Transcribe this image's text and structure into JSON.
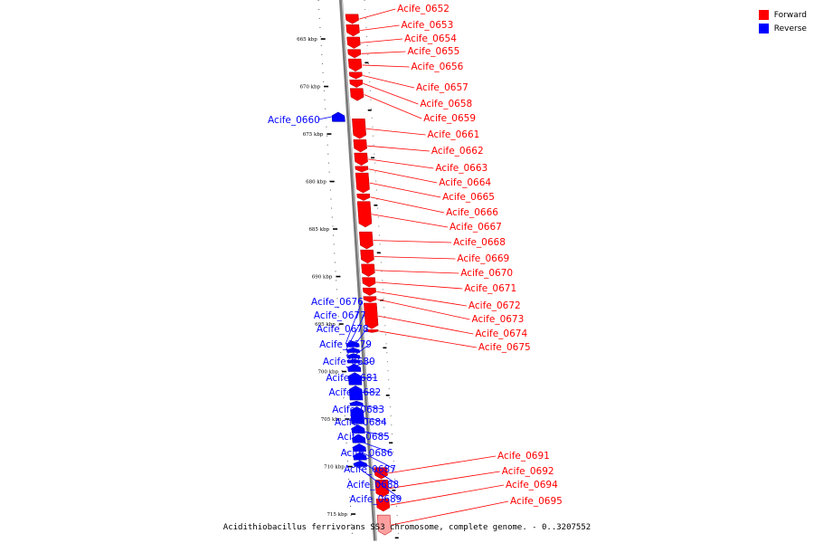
{
  "caption": "Acidithiobacillus ferrivorans SS3 chromosome, complete genome. - 0..3207552",
  "legend": [
    {
      "label": "Forward",
      "color": "#ff0000"
    },
    {
      "label": "Reverse",
      "color": "#0000ff"
    }
  ],
  "colors": {
    "forward": "#ff0000",
    "reverse": "#0000ff",
    "backbone": "#808080",
    "highlight": "#ffa0a0"
  },
  "ticks": [
    {
      "kbp": 665,
      "label": "665 kbp"
    },
    {
      "kbp": 670,
      "label": "670 kbp"
    },
    {
      "kbp": 675,
      "label": "675 kbp"
    },
    {
      "kbp": 680,
      "label": "680 kbp"
    },
    {
      "kbp": 685,
      "label": "685 kbp"
    },
    {
      "kbp": 690,
      "label": "690 kbp"
    },
    {
      "kbp": 695,
      "label": "695 kbp"
    },
    {
      "kbp": 700,
      "label": "700 kbp"
    },
    {
      "kbp": 705,
      "label": "705 kbp"
    },
    {
      "kbp": 710,
      "label": "710 kbp"
    },
    {
      "kbp": 715,
      "label": "715 kbp"
    }
  ],
  "genes": [
    {
      "name": "Acife_0652",
      "strand": "forward",
      "start": 662.4,
      "end": 663.4
    },
    {
      "name": "Acife_0653",
      "strand": "forward",
      "start": 663.5,
      "end": 664.7
    },
    {
      "name": "Acife_0654",
      "strand": "forward",
      "start": 664.8,
      "end": 666.0
    },
    {
      "name": "Acife_0655",
      "strand": "forward",
      "start": 666.1,
      "end": 667.0
    },
    {
      "name": "Acife_0656",
      "strand": "forward",
      "start": 667.1,
      "end": 668.4
    },
    {
      "name": "Acife_0657",
      "strand": "forward",
      "start": 668.5,
      "end": 669.2
    },
    {
      "name": "Acife_0658",
      "strand": "forward",
      "start": 669.3,
      "end": 670.1
    },
    {
      "name": "Acife_0659",
      "strand": "forward",
      "start": 670.2,
      "end": 671.5
    },
    {
      "name": "Acife_0660",
      "strand": "reverse",
      "start": 672.7,
      "end": 673.7
    },
    {
      "name": "Acife_0661",
      "strand": "forward",
      "start": 673.4,
      "end": 675.5
    },
    {
      "name": "Acife_0662",
      "strand": "forward",
      "start": 675.6,
      "end": 676.9
    },
    {
      "name": "Acife_0663",
      "strand": "forward",
      "start": 677.0,
      "end": 678.3
    },
    {
      "name": "Acife_0664",
      "strand": "forward",
      "start": 678.4,
      "end": 679.0
    },
    {
      "name": "Acife_0665",
      "strand": "forward",
      "start": 679.1,
      "end": 681.2
    },
    {
      "name": "Acife_0666",
      "strand": "forward",
      "start": 681.3,
      "end": 682.0
    },
    {
      "name": "Acife_0667",
      "strand": "forward",
      "start": 682.1,
      "end": 684.8
    },
    {
      "name": "Acife_0668",
      "strand": "forward",
      "start": 685.3,
      "end": 687.1
    },
    {
      "name": "Acife_0669",
      "strand": "forward",
      "start": 687.2,
      "end": 688.6
    },
    {
      "name": "Acife_0670",
      "strand": "forward",
      "start": 688.7,
      "end": 690.0
    },
    {
      "name": "Acife_0671",
      "strand": "forward",
      "start": 690.1,
      "end": 691.1
    },
    {
      "name": "Acife_0672",
      "strand": "forward",
      "start": 691.2,
      "end": 692.0
    },
    {
      "name": "Acife_0673",
      "strand": "forward",
      "start": 692.1,
      "end": 692.7
    },
    {
      "name": "Acife_0674",
      "strand": "forward",
      "start": 692.8,
      "end": 695.5
    },
    {
      "name": "Acife_0675",
      "strand": "forward",
      "start": 695.6,
      "end": 695.9
    },
    {
      "name": "Acife_0676",
      "strand": "reverse",
      "start": 696.8,
      "end": 697.4
    },
    {
      "name": "Acife_0677",
      "strand": "reverse",
      "start": 697.5,
      "end": 698.0
    },
    {
      "name": "Acife_0678",
      "strand": "reverse",
      "start": 698.1,
      "end": 698.6
    },
    {
      "name": "Acife_0679",
      "strand": "reverse",
      "start": 698.7,
      "end": 699.1
    },
    {
      "name": "Acife_0680",
      "strand": "reverse",
      "start": 699.2,
      "end": 700.0
    },
    {
      "name": "Acife_0681",
      "strand": "reverse",
      "start": 700.1,
      "end": 701.4
    },
    {
      "name": "Acife_0682",
      "strand": "reverse",
      "start": 701.5,
      "end": 703.0
    },
    {
      "name": "Acife_0683",
      "strand": "reverse",
      "start": 703.1,
      "end": 703.6
    },
    {
      "name": "Acife_0684",
      "strand": "reverse",
      "start": 703.7,
      "end": 705.5
    },
    {
      "name": "Acife_0685",
      "strand": "reverse",
      "start": 705.6,
      "end": 706.5
    },
    {
      "name": "Acife_0686",
      "strand": "reverse",
      "start": 706.6,
      "end": 707.5
    },
    {
      "name": "Acife_0687",
      "strand": "reverse",
      "start": 707.6,
      "end": 708.4
    },
    {
      "name": "Acife_0688",
      "strand": "reverse",
      "start": 708.5,
      "end": 709.3
    },
    {
      "name": "Acife_0689",
      "strand": "reverse",
      "start": 709.4,
      "end": 710.0
    },
    {
      "name": "Acife_0691",
      "strand": "forward",
      "start": 710.1,
      "end": 711.3
    },
    {
      "name": "Acife_0692",
      "strand": "forward",
      "start": 711.4,
      "end": 713.2
    },
    {
      "name": "Acife_0694",
      "strand": "forward",
      "start": 713.4,
      "end": 714.7
    },
    {
      "name": "Acife_0695",
      "strand": "forward",
      "start": 715.1,
      "end": 717.2,
      "highlight": true
    }
  ]
}
